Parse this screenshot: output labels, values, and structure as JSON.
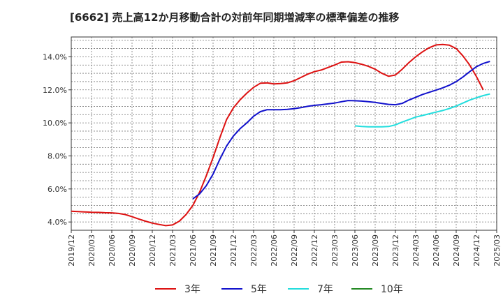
{
  "chart_data": {
    "type": "line",
    "title": "[6662]  売上高12か月移動合計の対前年同期増減率の標準偏差の推移",
    "xlabel": "",
    "ylabel": "",
    "ylim": [
      3.5,
      15.2
    ],
    "yticks": [
      4.0,
      6.0,
      8.0,
      10.0,
      12.0,
      14.0
    ],
    "ytick_labels": [
      "4.0%",
      "6.0%",
      "8.0%",
      "10.0%",
      "12.0%",
      "14.0%"
    ],
    "xticks": [
      "2019/12",
      "2020/03",
      "2020/06",
      "2020/09",
      "2020/12",
      "2021/03",
      "2021/06",
      "2021/09",
      "2021/12",
      "2022/03",
      "2022/06",
      "2022/09",
      "2022/12",
      "2023/03",
      "2023/06",
      "2023/09",
      "2023/12",
      "2024/03",
      "2024/06",
      "2024/09",
      "2024/12",
      "2025/03"
    ],
    "x_start": "2019/12",
    "grid": true,
    "legend_position": "bottom",
    "series": [
      {
        "name": "3年",
        "color": "#dd1111",
        "start_month_index": 0,
        "values": [
          4.65,
          4.63,
          4.61,
          4.59,
          4.58,
          4.56,
          4.55,
          4.52,
          4.45,
          4.32,
          4.18,
          4.05,
          3.93,
          3.85,
          3.78,
          3.82,
          4.05,
          4.45,
          5.0,
          5.8,
          6.8,
          7.9,
          9.1,
          10.2,
          10.9,
          11.4,
          11.8,
          12.15,
          12.4,
          12.42,
          12.36,
          12.38,
          12.42,
          12.55,
          12.75,
          12.95,
          13.1,
          13.2,
          13.35,
          13.5,
          13.68,
          13.7,
          13.65,
          13.55,
          13.42,
          13.25,
          13.0,
          12.82,
          12.9,
          13.25,
          13.65,
          14.0,
          14.3,
          14.55,
          14.72,
          14.75,
          14.7,
          14.5,
          14.05,
          13.5,
          12.8,
          12.0
        ]
      },
      {
        "name": "5年",
        "color": "#1111cc",
        "start_month_index": 18,
        "values": [
          5.4,
          5.7,
          6.2,
          6.9,
          7.8,
          8.6,
          9.2,
          9.65,
          10.0,
          10.4,
          10.68,
          10.8,
          10.8,
          10.8,
          10.82,
          10.86,
          10.92,
          11.0,
          11.06,
          11.1,
          11.15,
          11.2,
          11.28,
          11.35,
          11.34,
          11.32,
          11.28,
          11.24,
          11.18,
          11.12,
          11.1,
          11.18,
          11.38,
          11.55,
          11.72,
          11.85,
          11.98,
          12.12,
          12.28,
          12.5,
          12.78,
          13.1,
          13.4,
          13.6,
          13.72
        ]
      },
      {
        "name": "7年",
        "color": "#22dddd",
        "start_month_index": 42,
        "values": [
          9.82,
          9.78,
          9.76,
          9.76,
          9.76,
          9.78,
          9.88,
          10.05,
          10.2,
          10.35,
          10.45,
          10.55,
          10.65,
          10.75,
          10.87,
          11.02,
          11.2,
          11.38,
          11.52,
          11.65,
          11.75
        ]
      },
      {
        "name": "10年",
        "color": "#228822",
        "start_month_index": 0,
        "values": []
      }
    ]
  }
}
